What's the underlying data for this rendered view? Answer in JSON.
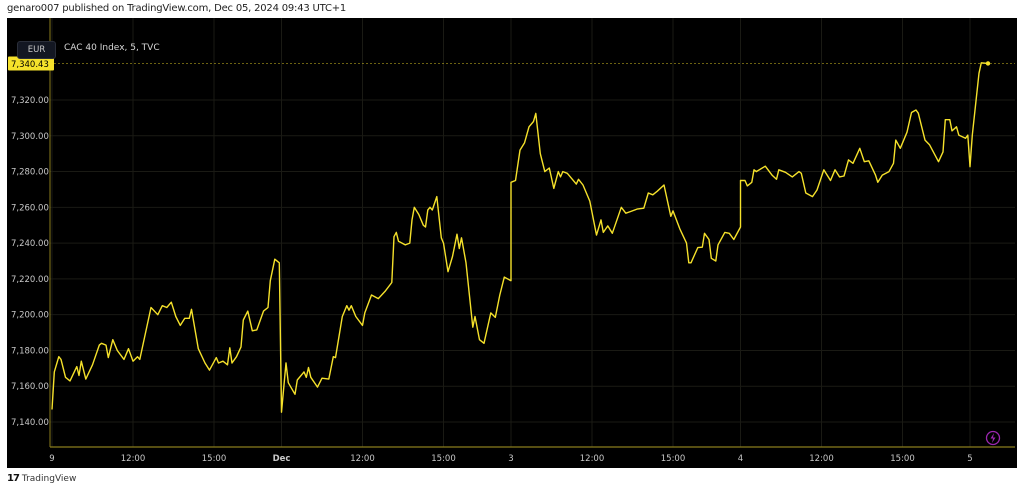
{
  "header": {
    "published": "genaro007 published on TradingView.com, Dec 05, 2024 09:43 UTC+1"
  },
  "toolbar": {
    "currency": "EUR",
    "symbol": "CAC 40 Index, 5, TVC"
  },
  "footer": {
    "brand": "TradingView",
    "logo_text": "17"
  },
  "colors": {
    "line": "#f5e12b",
    "background": "#000000",
    "axis": "#8a7d1c",
    "lightning": "#9c27b0"
  },
  "icons": {
    "bottom_right": "lightning-icon"
  },
  "chart_data": {
    "type": "line",
    "title": "",
    "xlabel": "",
    "ylabel": "",
    "ylim": [
      7130,
      7350
    ],
    "grid": true,
    "legend": "none",
    "y_ticks": [
      "7,140.00",
      "7,160.00",
      "7,180.00",
      "7,200.00",
      "7,220.00",
      "7,240.00",
      "7,260.00",
      "7,280.00",
      "7,300.00",
      "7,320.00"
    ],
    "y_tick_values": [
      7140,
      7160,
      7180,
      7200,
      7220,
      7240,
      7260,
      7280,
      7300,
      7320
    ],
    "last_price": 7340.43,
    "last_price_label": "7,340.43",
    "sessions": [
      "11-29",
      "12-02",
      "12-03",
      "12-04",
      "12-05"
    ],
    "x_ticks": [
      {
        "label": "9",
        "at": "11-29 09:00",
        "bold": false
      },
      {
        "label": "12:00",
        "at": "11-29 12:00",
        "bold": false
      },
      {
        "label": "15:00",
        "at": "11-29 15:00",
        "bold": false
      },
      {
        "label": "Dec",
        "at": "12-02 09:00",
        "bold": true
      },
      {
        "label": "12:00",
        "at": "12-02 12:00",
        "bold": false
      },
      {
        "label": "15:00",
        "at": "12-02 15:00",
        "bold": false
      },
      {
        "label": "3",
        "at": "12-03 09:00",
        "bold": false
      },
      {
        "label": "12:00",
        "at": "12-03 12:00",
        "bold": false
      },
      {
        "label": "15:00",
        "at": "12-03 15:00",
        "bold": false
      },
      {
        "label": "4",
        "at": "12-04 09:00",
        "bold": false
      },
      {
        "label": "12:00",
        "at": "12-04 12:00",
        "bold": false
      },
      {
        "label": "15:00",
        "at": "12-04 15:00",
        "bold": false
      },
      {
        "label": "5",
        "at": "12-05 09:00",
        "bold": false
      }
    ],
    "series": [
      {
        "points": [
          [
            "11-29 09:00",
            7147
          ],
          [
            "11-29 09:05",
            7168
          ],
          [
            "11-29 09:15",
            7176.5
          ],
          [
            "11-29 09:20",
            7175
          ],
          [
            "11-29 09:30",
            7165
          ],
          [
            "11-29 09:40",
            7163
          ],
          [
            "11-29 09:55",
            7171
          ],
          [
            "11-29 10:00",
            7166
          ],
          [
            "11-29 10:05",
            7174
          ],
          [
            "11-29 10:15",
            7164
          ],
          [
            "11-29 10:30",
            7172
          ],
          [
            "11-29 10:45",
            7183
          ],
          [
            "11-29 10:50",
            7184
          ],
          [
            "11-29 11:00",
            7183
          ],
          [
            "11-29 11:05",
            7176
          ],
          [
            "11-29 11:15",
            7186
          ],
          [
            "11-29 11:25",
            7180
          ],
          [
            "11-29 11:40",
            7175
          ],
          [
            "11-29 11:50",
            7181
          ],
          [
            "11-29 12:00",
            7174
          ],
          [
            "11-29 12:10",
            7176.5
          ],
          [
            "11-29 12:15",
            7175
          ],
          [
            "11-29 12:40",
            7204
          ],
          [
            "11-29 12:55",
            7200
          ],
          [
            "11-29 13:05",
            7205
          ],
          [
            "11-29 13:15",
            7204
          ],
          [
            "11-29 13:25",
            7207
          ],
          [
            "11-29 13:35",
            7199
          ],
          [
            "11-29 13:45",
            7194
          ],
          [
            "11-29 13:55",
            7198
          ],
          [
            "11-29 14:05",
            7198
          ],
          [
            "11-29 14:10",
            7203
          ],
          [
            "11-29 14:25",
            7181
          ],
          [
            "11-29 14:40",
            7173
          ],
          [
            "11-29 14:50",
            7169
          ],
          [
            "11-29 15:05",
            7176
          ],
          [
            "11-29 15:10",
            7173
          ],
          [
            "11-29 15:20",
            7174
          ],
          [
            "11-29 15:30",
            7172
          ],
          [
            "11-29 15:35",
            7181.5
          ],
          [
            "11-29 15:40",
            7173
          ],
          [
            "11-29 15:50",
            7176.5
          ],
          [
            "11-29 16:00",
            7182
          ],
          [
            "11-29 16:05",
            7197
          ],
          [
            "11-29 16:15",
            7202
          ],
          [
            "11-29 16:25",
            7191
          ],
          [
            "11-29 16:35",
            7191.5
          ],
          [
            "11-29 16:50",
            7202
          ],
          [
            "11-29 17:00",
            7204
          ],
          [
            "11-29 17:05",
            7219
          ],
          [
            "11-29 17:15",
            7231
          ],
          [
            "11-29 17:25",
            7229
          ],
          [
            "12-02 09:00",
            7145.5
          ],
          [
            "12-02 09:10",
            7173
          ],
          [
            "12-02 09:15",
            7162
          ],
          [
            "12-02 09:30",
            7155.5
          ],
          [
            "12-02 09:35",
            7163.5
          ],
          [
            "12-02 09:50",
            7168
          ],
          [
            "12-02 09:55",
            7165
          ],
          [
            "12-02 10:00",
            7170.5
          ],
          [
            "12-02 10:05",
            7165
          ],
          [
            "12-02 10:20",
            7159.5
          ],
          [
            "12-02 10:30",
            7164.5
          ],
          [
            "12-02 10:45",
            7164
          ],
          [
            "12-02 10:55",
            7176.5
          ],
          [
            "12-02 11:00",
            7176
          ],
          [
            "12-02 11:15",
            7199
          ],
          [
            "12-02 11:25",
            7205
          ],
          [
            "12-02 11:30",
            7202.5
          ],
          [
            "12-02 11:35",
            7205
          ],
          [
            "12-02 11:45",
            7199
          ],
          [
            "12-02 12:00",
            7194
          ],
          [
            "12-02 12:05",
            7201
          ],
          [
            "12-02 12:20",
            7211
          ],
          [
            "12-02 12:35",
            7209
          ],
          [
            "12-02 12:50",
            7213
          ],
          [
            "12-02 13:05",
            7218
          ],
          [
            "12-02 13:10",
            7243.6
          ],
          [
            "12-02 13:15",
            7246
          ],
          [
            "12-02 13:20",
            7241
          ],
          [
            "12-02 13:35",
            7239
          ],
          [
            "12-02 13:45",
            7240
          ],
          [
            "12-02 13:50",
            7253
          ],
          [
            "12-02 13:55",
            7260
          ],
          [
            "12-02 14:05",
            7256
          ],
          [
            "12-02 14:15",
            7250
          ],
          [
            "12-02 14:20",
            7249
          ],
          [
            "12-02 14:25",
            7258.5
          ],
          [
            "12-02 14:30",
            7260
          ],
          [
            "12-02 14:35",
            7258.5
          ],
          [
            "12-02 14:45",
            7266
          ],
          [
            "12-02 14:55",
            7243
          ],
          [
            "12-02 15:00",
            7240
          ],
          [
            "12-02 15:10",
            7224
          ],
          [
            "12-02 15:20",
            7232.5
          ],
          [
            "12-02 15:30",
            7245
          ],
          [
            "12-02 15:35",
            7237
          ],
          [
            "12-02 15:40",
            7243
          ],
          [
            "12-02 15:50",
            7229
          ],
          [
            "12-02 16:05",
            7193
          ],
          [
            "12-02 16:10",
            7199
          ],
          [
            "12-02 16:20",
            7186
          ],
          [
            "12-02 16:30",
            7184
          ],
          [
            "12-02 16:45",
            7201
          ],
          [
            "12-02 16:55",
            7198.5
          ],
          [
            "12-02 17:05",
            7211
          ],
          [
            "12-02 17:15",
            7221
          ],
          [
            "12-02 17:30",
            7219
          ],
          [
            "12-03 09:00",
            7274
          ],
          [
            "12-03 09:10",
            7275
          ],
          [
            "12-03 09:20",
            7292
          ],
          [
            "12-03 09:30",
            7296
          ],
          [
            "12-03 09:40",
            7305
          ],
          [
            "12-03 09:50",
            7308
          ],
          [
            "12-03 09:55",
            7312.5
          ],
          [
            "12-03 10:05",
            7290
          ],
          [
            "12-03 10:15",
            7280
          ],
          [
            "12-03 10:25",
            7282
          ],
          [
            "12-03 10:35",
            7270.6
          ],
          [
            "12-03 10:45",
            7280
          ],
          [
            "12-03 10:50",
            7277
          ],
          [
            "12-03 10:55",
            7280
          ],
          [
            "12-03 11:05",
            7279
          ],
          [
            "12-03 11:25",
            7273
          ],
          [
            "12-03 11:30",
            7275.7
          ],
          [
            "12-03 11:40",
            7272.5
          ],
          [
            "12-03 11:55",
            7263.5
          ],
          [
            "12-03 12:10",
            7244.5
          ],
          [
            "12-03 12:20",
            7253
          ],
          [
            "12-03 12:25",
            7246
          ],
          [
            "12-03 12:35",
            7249.6
          ],
          [
            "12-03 12:45",
            7245.5
          ],
          [
            "12-03 13:05",
            7260
          ],
          [
            "12-03 13:15",
            7256.7
          ],
          [
            "12-03 13:25",
            7257.6
          ],
          [
            "12-03 13:40",
            7259
          ],
          [
            "12-03 13:55",
            7259.5
          ],
          [
            "12-03 14:05",
            7268
          ],
          [
            "12-03 14:15",
            7267
          ],
          [
            "12-03 14:25",
            7269
          ],
          [
            "12-03 14:40",
            7272.5
          ],
          [
            "12-03 14:55",
            7255
          ],
          [
            "12-03 15:00",
            7258
          ],
          [
            "12-03 15:15",
            7248
          ],
          [
            "12-03 15:30",
            7240
          ],
          [
            "12-03 15:35",
            7229
          ],
          [
            "12-03 15:40",
            7229
          ],
          [
            "12-03 15:55",
            7237.5
          ],
          [
            "12-03 16:05",
            7237.7
          ],
          [
            "12-03 16:10",
            7245.5
          ],
          [
            "12-03 16:20",
            7242
          ],
          [
            "12-03 16:25",
            7231.5
          ],
          [
            "12-03 16:35",
            7230
          ],
          [
            "12-03 16:40",
            7239
          ],
          [
            "12-03 16:55",
            7246
          ],
          [
            "12-03 17:05",
            7245.5
          ],
          [
            "12-03 17:15",
            7242
          ],
          [
            "12-03 17:30",
            7249
          ],
          [
            "12-04 09:00",
            7275
          ],
          [
            "12-04 09:10",
            7275
          ],
          [
            "12-04 09:15",
            7272
          ],
          [
            "12-04 09:25",
            7274
          ],
          [
            "12-04 09:30",
            7281
          ],
          [
            "12-04 09:35",
            7280
          ],
          [
            "12-04 09:55",
            7283
          ],
          [
            "12-04 10:10",
            7278
          ],
          [
            "12-04 10:20",
            7275.7
          ],
          [
            "12-04 10:25",
            7281
          ],
          [
            "12-04 10:40",
            7279.6
          ],
          [
            "12-04 10:55",
            7277
          ],
          [
            "12-04 11:10",
            7280
          ],
          [
            "12-04 11:15",
            7279
          ],
          [
            "12-04 11:25",
            7268
          ],
          [
            "12-04 11:40",
            7266
          ],
          [
            "12-04 11:50",
            7269.7
          ],
          [
            "12-04 12:05",
            7281
          ],
          [
            "12-04 12:20",
            7275
          ],
          [
            "12-04 12:30",
            7281
          ],
          [
            "12-04 12:40",
            7277
          ],
          [
            "12-04 12:50",
            7277.5
          ],
          [
            "12-04 13:00",
            7286.5
          ],
          [
            "12-04 13:10",
            7284.6
          ],
          [
            "12-04 13:25",
            7293
          ],
          [
            "12-04 13:35",
            7285.5
          ],
          [
            "12-04 13:45",
            7286
          ],
          [
            "12-04 14:00",
            7278
          ],
          [
            "12-04 14:05",
            7274
          ],
          [
            "12-04 14:15",
            7278
          ],
          [
            "12-04 14:30",
            7280
          ],
          [
            "12-04 14:40",
            7284.6
          ],
          [
            "12-04 14:45",
            7297.6
          ],
          [
            "12-04 14:55",
            7293
          ],
          [
            "12-04 15:10",
            7302
          ],
          [
            "12-04 15:20",
            7313
          ],
          [
            "12-04 15:30",
            7314.4
          ],
          [
            "12-04 15:35",
            7312.6
          ],
          [
            "12-04 15:50",
            7297.6
          ],
          [
            "12-04 16:00",
            7295
          ],
          [
            "12-04 16:20",
            7285.5
          ],
          [
            "12-04 16:30",
            7291
          ],
          [
            "12-04 16:35",
            7309
          ],
          [
            "12-04 16:45",
            7309
          ],
          [
            "12-04 16:50",
            7302.7
          ],
          [
            "12-04 17:00",
            7305
          ],
          [
            "12-04 17:05",
            7300.4
          ],
          [
            "12-04 17:20",
            7298.6
          ],
          [
            "12-04 17:25",
            7300.4
          ],
          [
            "12-05 09:00",
            7282.7
          ],
          [
            "12-05 09:05",
            7300.4
          ],
          [
            "12-05 09:20",
            7335
          ],
          [
            "12-05 09:25",
            7340.8
          ],
          [
            "12-05 09:40",
            7340.43
          ]
        ]
      }
    ]
  }
}
